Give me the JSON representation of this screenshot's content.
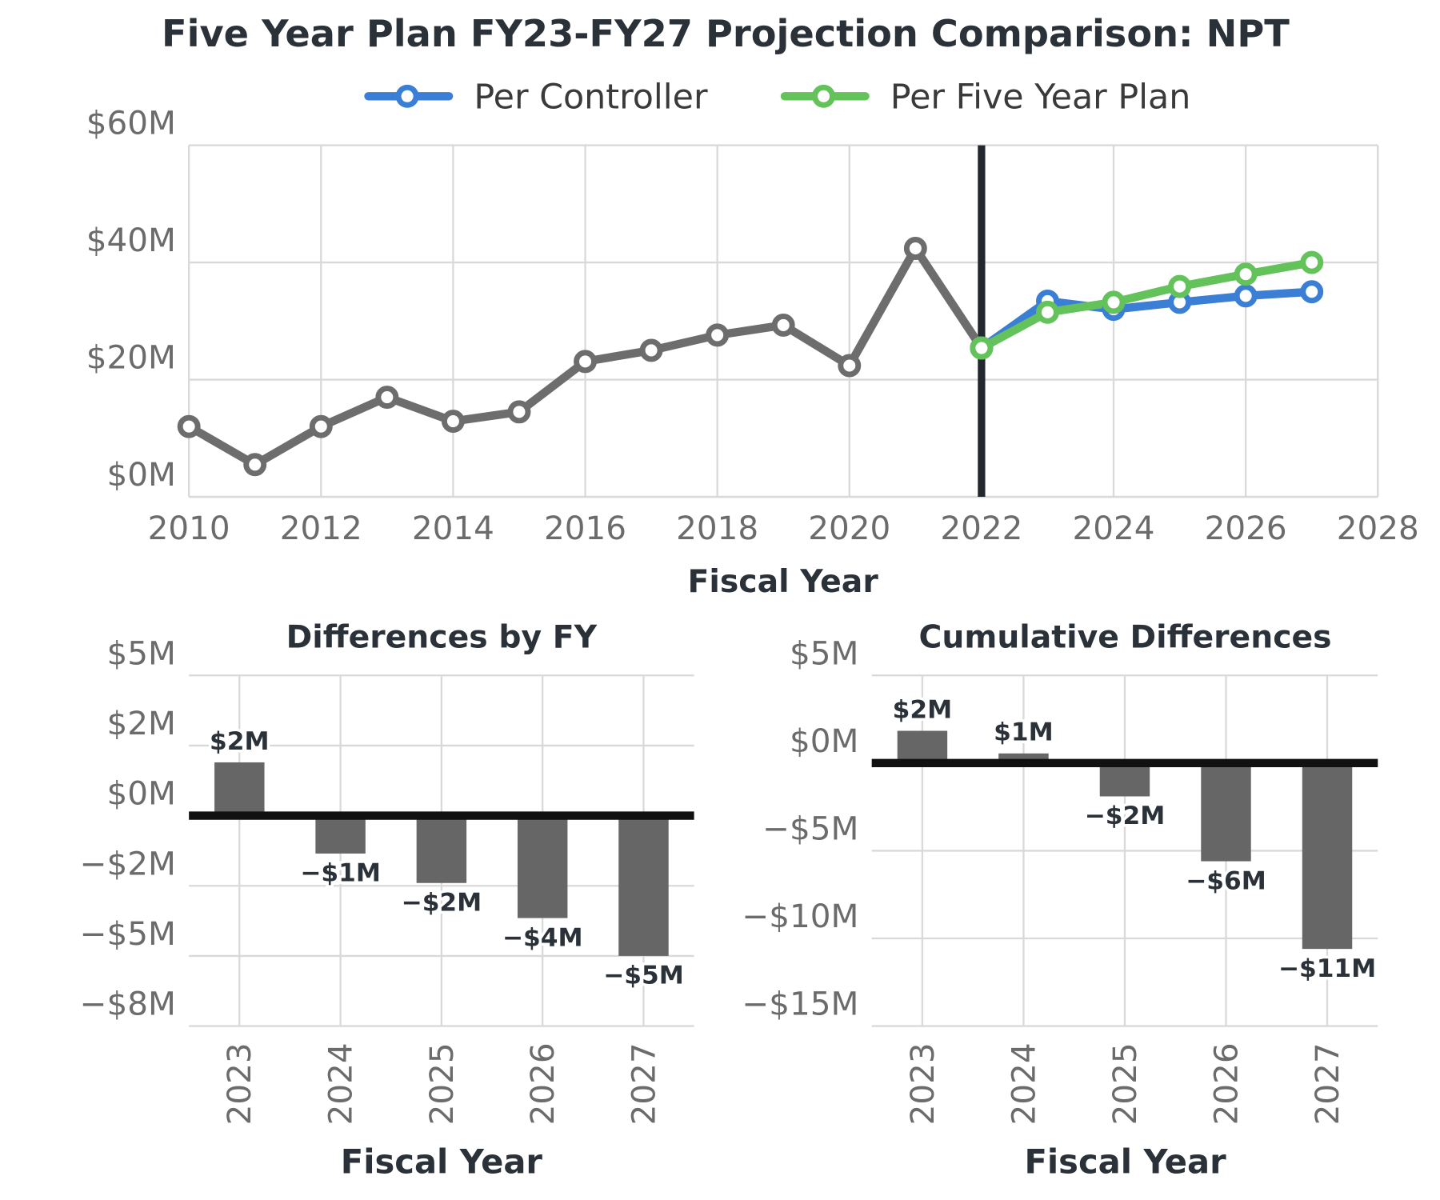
{
  "chart_data": [
    {
      "type": "line",
      "title": "Five Year Plan FY23-FY27 Projection Comparison: NPT",
      "x_label": "Fiscal Year",
      "x": [
        2010,
        2011,
        2012,
        2013,
        2014,
        2015,
        2016,
        2017,
        2018,
        2019,
        2020,
        2021,
        2022,
        2023,
        2024,
        2025,
        2026,
        2027
      ],
      "series": [
        {
          "color": "#6d6d6d",
          "values": [
            12.0,
            5.5,
            12.0,
            17.0,
            12.9,
            14.5,
            23.1,
            25.0,
            27.6,
            29.3,
            22.4,
            42.4,
            25.4,
            null,
            null,
            null,
            null,
            null
          ]
        },
        {
          "name": "Per Controller",
          "color": "#3a7fd5",
          "values": [
            null,
            null,
            null,
            null,
            null,
            null,
            null,
            null,
            null,
            null,
            null,
            null,
            25.4,
            33.4,
            32.0,
            33.2,
            34.3,
            35.0
          ]
        },
        {
          "name": "Per Five Year Plan",
          "color": "#63c35a",
          "values": [
            null,
            null,
            null,
            null,
            null,
            null,
            null,
            null,
            null,
            null,
            null,
            null,
            25.4,
            31.5,
            33.2,
            35.9,
            38.0,
            40.0
          ]
        }
      ],
      "vline": 2022,
      "xlim": [
        2010,
        2028
      ],
      "xticks": [
        2010,
        2012,
        2014,
        2016,
        2018,
        2020,
        2022,
        2024,
        2026,
        2028
      ],
      "ylim": [
        0,
        60
      ],
      "yticks": [
        {
          "value": 0,
          "label": "$0M"
        },
        {
          "value": 20,
          "label": "$20M"
        },
        {
          "value": 40,
          "label": "$40M"
        },
        {
          "value": 60,
          "label": "$60M"
        }
      ],
      "grid": true,
      "legend": "top"
    },
    {
      "type": "bar",
      "title": "Differences by FY",
      "x_label": "Fiscal Year",
      "categories": [
        "2023",
        "2024",
        "2025",
        "2026",
        "2027"
      ],
      "values": [
        1.9,
        -1.35,
        -2.4,
        -3.65,
        -5.0
      ],
      "value_labels": [
        "$2M",
        "−$1M",
        "−$2M",
        "−$4M",
        "−$5M"
      ],
      "color": "#666666",
      "ylim": [
        -7.5,
        5
      ],
      "yticks": [
        {
          "value": 5,
          "label": "$5M"
        },
        {
          "value": 2.5,
          "label": "$2M"
        },
        {
          "value": 0,
          "label": "$0M"
        },
        {
          "value": -2.5,
          "label": "−$2M"
        },
        {
          "value": -5,
          "label": "−$5M"
        },
        {
          "value": -7.5,
          "label": "−$8M"
        }
      ],
      "grid": true
    },
    {
      "type": "bar",
      "title": "Cumulative Differences",
      "x_label": "Fiscal Year",
      "categories": [
        "2023",
        "2024",
        "2025",
        "2026",
        "2027"
      ],
      "values": [
        1.84,
        0.55,
        -1.9,
        -5.6,
        -10.6
      ],
      "value_labels": [
        "$2M",
        "$1M",
        "−$2M",
        "−$6M",
        "−$11M"
      ],
      "color": "#666666",
      "ylim": [
        -15,
        5
      ],
      "yticks": [
        {
          "value": 5,
          "label": "$5M"
        },
        {
          "value": 0,
          "label": "$0M"
        },
        {
          "value": -5,
          "label": "−$5M"
        },
        {
          "value": -10,
          "label": "−$10M"
        },
        {
          "value": -15,
          "label": "−$15M"
        }
      ],
      "grid": true
    }
  ]
}
